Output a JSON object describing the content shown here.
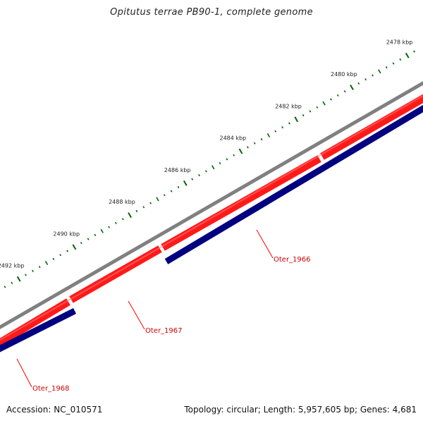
{
  "title": "Opitutus terrae PB90-1, complete genome",
  "footer": {
    "accession": "Accession: NC_010571",
    "topology": "Topology: circular; Length: 5,957,605 bp; Genes: 4,681"
  },
  "colors": {
    "backbone": "#808080",
    "forward_strand": "#ff0000",
    "reverse_strand": "#000080",
    "ticks": "#006400",
    "gene_label": "#cc0000",
    "leader_line": "#ff0000"
  },
  "scale": {
    "unit": "kbp",
    "labels": [
      {
        "text": "2478 kbp",
        "kbp": 2478
      },
      {
        "text": "2480 kbp",
        "kbp": 2480
      },
      {
        "text": "2482 kbp",
        "kbp": 2482
      },
      {
        "text": "2484 kbp",
        "kbp": 2484
      },
      {
        "text": "2486 kbp",
        "kbp": 2486
      },
      {
        "text": "2488 kbp",
        "kbp": 2488
      },
      {
        "text": "2490 kbp",
        "kbp": 2490
      },
      {
        "text": "2492 kbp",
        "kbp": 2492
      }
    ]
  },
  "genes": [
    {
      "label": "Oter_1966"
    },
    {
      "label": "Oter_1967"
    },
    {
      "label": "Oter_1968"
    }
  ]
}
